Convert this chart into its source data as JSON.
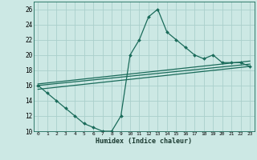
{
  "xlabel": "Humidex (Indice chaleur)",
  "bg_color": "#cce8e4",
  "grid_color": "#aacfcb",
  "line_color": "#1a6b5a",
  "xlim": [
    -0.5,
    23.5
  ],
  "ylim": [
    10,
    27
  ],
  "xticks": [
    0,
    1,
    2,
    3,
    4,
    5,
    6,
    7,
    8,
    9,
    10,
    11,
    12,
    13,
    14,
    15,
    16,
    17,
    18,
    19,
    20,
    21,
    22,
    23
  ],
  "yticks": [
    10,
    12,
    14,
    16,
    18,
    20,
    22,
    24,
    26
  ],
  "series1_x": [
    0,
    1,
    2,
    3,
    4,
    5,
    6,
    7,
    8,
    9,
    10,
    11,
    12,
    13,
    14,
    15,
    16,
    17,
    18,
    19,
    20,
    21,
    22,
    23
  ],
  "series1_y": [
    16,
    15,
    14,
    13,
    12,
    11,
    10.5,
    10,
    10,
    12,
    20,
    22,
    25,
    26,
    23,
    22,
    21,
    20,
    19.5,
    20,
    19,
    19,
    19,
    18.5
  ],
  "series2_x": [
    0,
    23
  ],
  "series2_y": [
    16.0,
    18.8
  ],
  "series3_x": [
    0,
    23
  ],
  "series3_y": [
    15.5,
    18.5
  ],
  "series4_x": [
    0,
    23
  ],
  "series4_y": [
    16.2,
    19.2
  ]
}
